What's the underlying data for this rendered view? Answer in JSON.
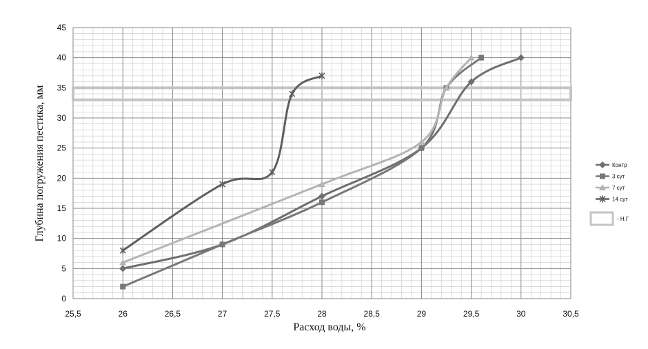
{
  "chart_data": {
    "type": "line",
    "title": "",
    "xlabel": "Расход воды, %",
    "ylabel": "Глубина погружения пестика, мм",
    "xlim": [
      25.5,
      30.5
    ],
    "ylim": [
      0,
      45
    ],
    "x_ticks": [
      "25,5",
      "26",
      "26,5",
      "27",
      "27,5",
      "28",
      "28,5",
      "29",
      "29,5",
      "30",
      "30,5"
    ],
    "y_ticks": [
      "0",
      "5",
      "10",
      "15",
      "20",
      "25",
      "30",
      "35",
      "40",
      "45"
    ],
    "grid": true,
    "legend_position": "right",
    "series": [
      {
        "name": "Контр",
        "marker": "diamond",
        "color": "#6f6f6f",
        "x": [
          26,
          27,
          28,
          29,
          29.5,
          30
        ],
        "y": [
          5,
          9,
          17,
          25,
          36,
          40
        ]
      },
      {
        "name": "3 сут",
        "marker": "square",
        "color": "#787878",
        "x": [
          26,
          27,
          28,
          29,
          29.25,
          29.6
        ],
        "y": [
          2,
          9,
          16,
          25,
          35,
          40
        ]
      },
      {
        "name": "7 сут",
        "marker": "triangle",
        "color": "#b4b4b4",
        "x": [
          26,
          28,
          29,
          29.25,
          29.5
        ],
        "y": [
          6,
          19,
          26,
          35,
          40
        ]
      },
      {
        "name": "14 сут",
        "marker": "star",
        "color": "#5e5e5e",
        "x": [
          26,
          27,
          27.5,
          27.7,
          28
        ],
        "y": [
          8,
          19,
          21,
          34,
          37
        ]
      }
    ],
    "band": {
      "name": "- Н.Г",
      "y_from": 33,
      "y_to": 35,
      "color": "#c4c4c4"
    }
  }
}
